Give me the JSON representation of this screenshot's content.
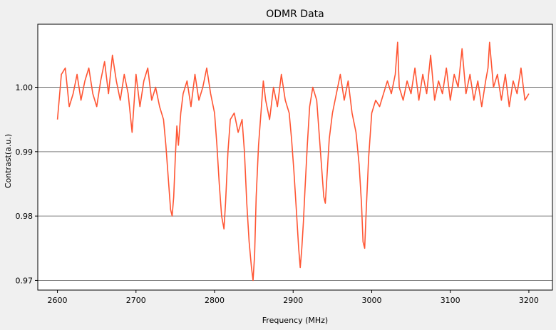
{
  "chart_data": {
    "type": "line",
    "title": "ODMR Data",
    "xlabel": "Frequency (MHz)",
    "ylabel": "Contrast(a.u.)",
    "xlim": [
      2575,
      3230
    ],
    "ylim": [
      0.9685,
      1.0098
    ],
    "x_ticks": [
      2600,
      2700,
      2800,
      2900,
      3000,
      3100,
      3200
    ],
    "x_tick_labels": [
      "2600",
      "2700",
      "2800",
      "2900",
      "3000",
      "3100",
      "3200"
    ],
    "y_ticks": [
      0.97,
      0.98,
      0.99,
      1.0
    ],
    "y_tick_labels": [
      "0.97",
      "0.98",
      "0.99",
      "1.00"
    ],
    "grid": "horizontal",
    "legend": "none",
    "colors": {
      "line": "#ff5533",
      "background": "#f0f0f0",
      "plot_background": "#ffffff",
      "grid": "#808080",
      "axis": "#000000"
    },
    "series": [
      {
        "x": [
          2600,
          2605,
          2610,
          2615,
          2620,
          2625,
          2630,
          2635,
          2640,
          2645,
          2650,
          2655,
          2660,
          2665,
          2670,
          2675,
          2680,
          2685,
          2690,
          2695,
          2700,
          2705,
          2710,
          2715,
          2720,
          2725,
          2730,
          2735,
          2738,
          2741,
          2744,
          2746,
          2748,
          2750,
          2752,
          2754,
          2757,
          2760,
          2765,
          2770,
          2775,
          2780,
          2785,
          2790,
          2795,
          2800,
          2803,
          2806,
          2809,
          2812,
          2814,
          2817,
          2820,
          2825,
          2830,
          2835,
          2838,
          2841,
          2844,
          2847,
          2849,
          2851,
          2853,
          2856,
          2859,
          2862,
          2865,
          2870,
          2875,
          2880,
          2885,
          2890,
          2895,
          2898,
          2901,
          2904,
          2907,
          2909,
          2911,
          2913,
          2915,
          2918,
          2921,
          2925,
          2930,
          2933,
          2936,
          2939,
          2941,
          2943,
          2946,
          2950,
          2955,
          2960,
          2965,
          2970,
          2975,
          2980,
          2984,
          2987,
          2989,
          2991,
          2993,
          2996,
          3000,
          3005,
          3010,
          3015,
          3020,
          3025,
          3030,
          3033,
          3035,
          3040,
          3045,
          3050,
          3055,
          3060,
          3065,
          3070,
          3075,
          3080,
          3085,
          3090,
          3095,
          3100,
          3105,
          3110,
          3115,
          3120,
          3125,
          3130,
          3135,
          3140,
          3145,
          3148,
          3150,
          3155,
          3160,
          3165,
          3170,
          3175,
          3180,
          3185,
          3190,
          3195,
          3200
        ],
        "values": [
          0.995,
          1.002,
          1.003,
          0.997,
          0.999,
          1.002,
          0.998,
          1.001,
          1.003,
          0.999,
          0.997,
          1.001,
          1.004,
          0.999,
          1.005,
          1.001,
          0.998,
          1.002,
          0.999,
          0.993,
          1.002,
          0.997,
          1.001,
          1.003,
          0.998,
          1.0,
          0.997,
          0.995,
          0.991,
          0.986,
          0.981,
          0.98,
          0.983,
          0.989,
          0.994,
          0.991,
          0.996,
          0.999,
          1.001,
          0.997,
          1.002,
          0.998,
          1.0,
          1.003,
          0.999,
          0.996,
          0.991,
          0.985,
          0.98,
          0.978,
          0.982,
          0.99,
          0.995,
          0.996,
          0.993,
          0.995,
          0.99,
          0.982,
          0.976,
          0.972,
          0.97,
          0.974,
          0.983,
          0.991,
          0.996,
          1.001,
          0.998,
          0.995,
          1.0,
          0.997,
          1.002,
          0.998,
          0.996,
          0.992,
          0.987,
          0.981,
          0.975,
          0.972,
          0.975,
          0.979,
          0.984,
          0.991,
          0.997,
          1.0,
          0.998,
          0.993,
          0.988,
          0.983,
          0.982,
          0.986,
          0.992,
          0.996,
          0.999,
          1.002,
          0.998,
          1.001,
          0.996,
          0.993,
          0.988,
          0.982,
          0.976,
          0.975,
          0.981,
          0.989,
          0.996,
          0.998,
          0.997,
          0.999,
          1.001,
          0.999,
          1.002,
          1.007,
          1.0,
          0.998,
          1.001,
          0.999,
          1.003,
          0.998,
          1.002,
          0.999,
          1.005,
          0.998,
          1.001,
          0.999,
          1.003,
          0.998,
          1.002,
          1.0,
          1.006,
          0.999,
          1.002,
          0.998,
          1.001,
          0.997,
          1.001,
          1.003,
          1.007,
          1.0,
          1.002,
          0.998,
          1.002,
          0.997,
          1.001,
          0.999,
          1.003,
          0.998,
          0.999
        ]
      }
    ]
  }
}
